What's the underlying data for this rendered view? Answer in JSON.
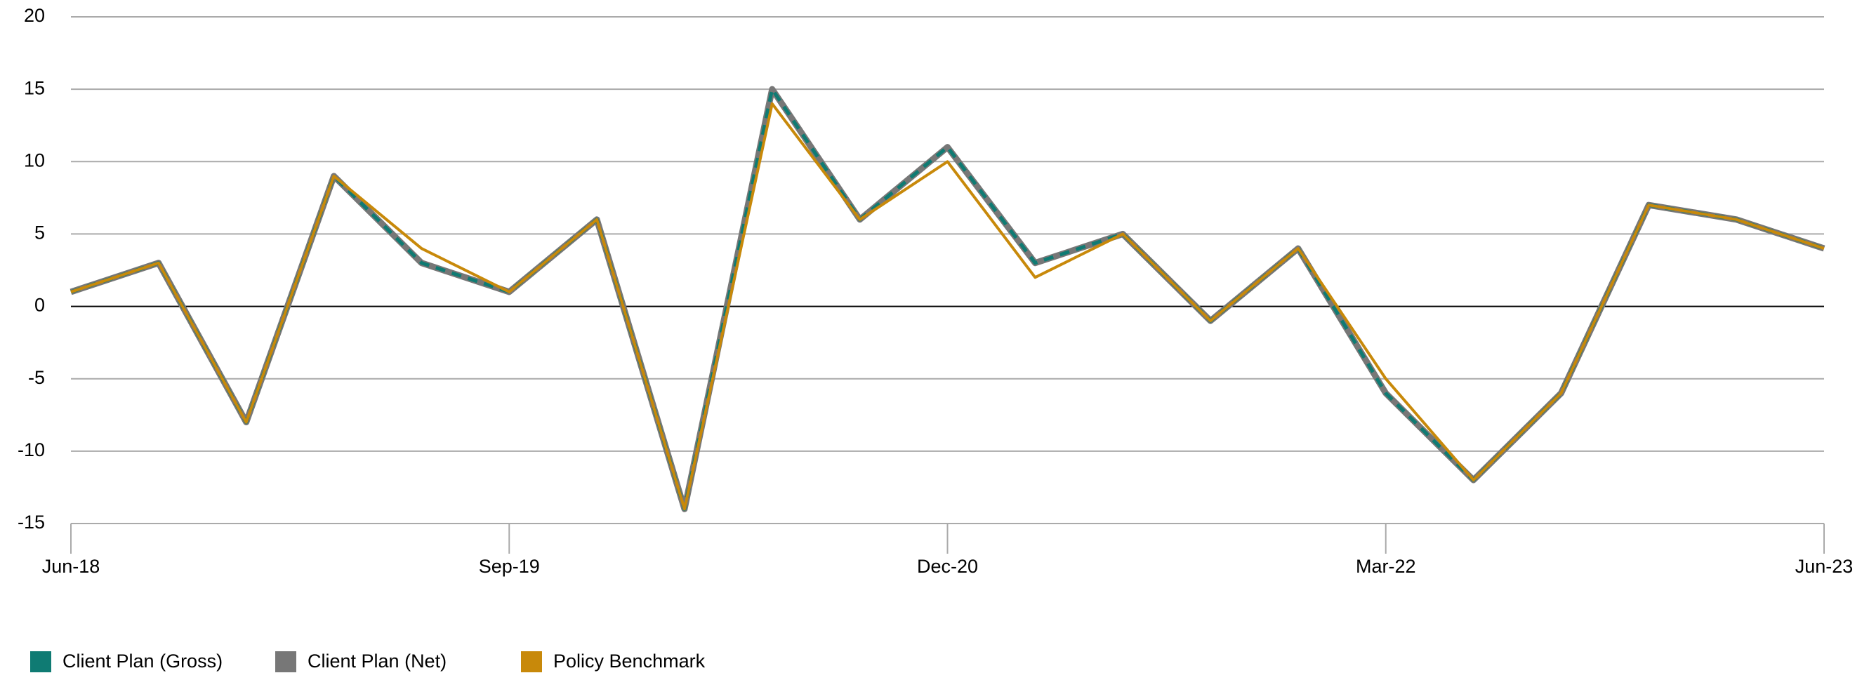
{
  "chart_data": {
    "type": "line",
    "categories": [
      "Jun-18",
      null,
      null,
      null,
      null,
      "Sep-19",
      null,
      null,
      null,
      null,
      "Dec-20",
      null,
      null,
      null,
      null,
      "Mar-22",
      null,
      null,
      null,
      null,
      "Jun-23"
    ],
    "series": [
      {
        "name": "Client Plan (Gross)",
        "color": "#0f7b73",
        "values": [
          1,
          3,
          -8,
          9,
          3,
          1,
          6,
          -14,
          15,
          6,
          11,
          3,
          5,
          -1,
          4,
          -6,
          -12,
          -6,
          7,
          6,
          4
        ]
      },
      {
        "name": "Client Plan (Net)",
        "color": "#777777",
        "values": [
          1,
          3,
          -8,
          9,
          3,
          1,
          6,
          -14,
          15,
          6,
          11,
          3,
          5,
          -1,
          4,
          -6,
          -12,
          -6,
          7,
          6,
          4
        ]
      },
      {
        "name": "Policy Benchmark",
        "color": "#c8890a",
        "values": [
          1,
          3,
          -8,
          9,
          4,
          1,
          6,
          -14,
          14,
          6,
          10,
          2,
          5,
          -1,
          4,
          -5,
          -12,
          -6,
          7,
          6,
          4
        ]
      }
    ],
    "ylim": [
      -15,
      20
    ],
    "yticks": [
      -15,
      -10,
      -5,
      0,
      5,
      10,
      15,
      20
    ],
    "grid": true,
    "legend": "bottom"
  }
}
